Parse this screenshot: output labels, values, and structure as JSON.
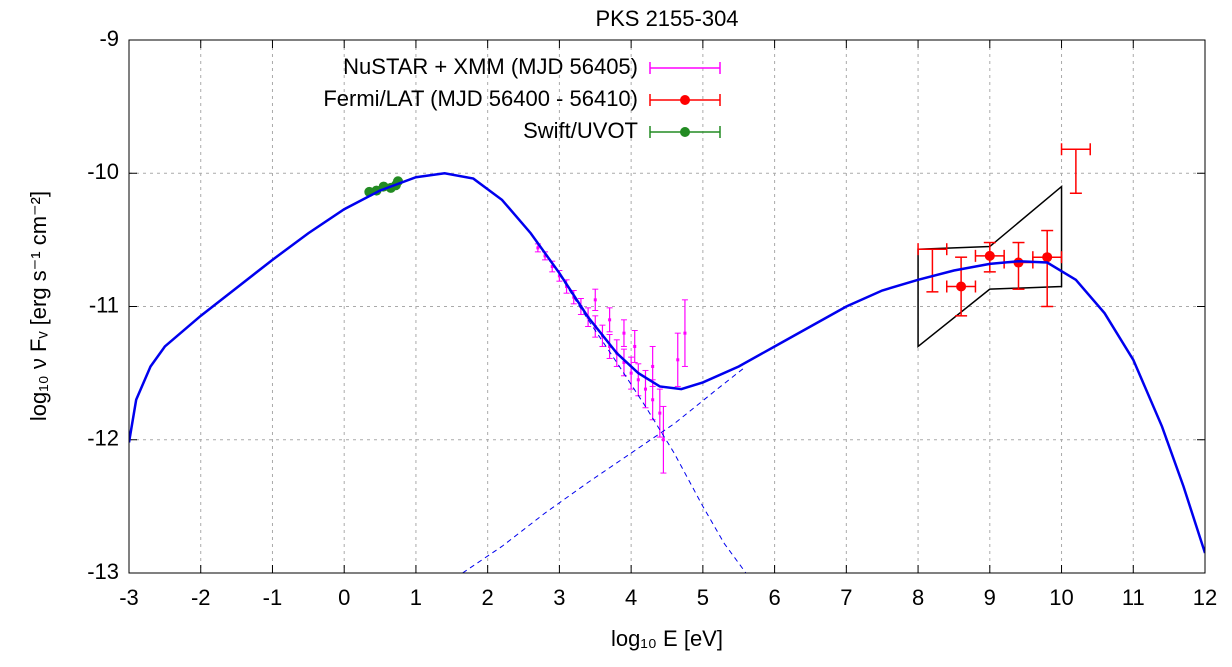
{
  "chart_data": {
    "type": "sed",
    "title": "PKS 2155-304",
    "xlabel": "log₁₀ E [eV]",
    "ylabel": "log₁₀ ν Fᵥ [erg s⁻¹ cm⁻²]",
    "xlim": [
      -3,
      12
    ],
    "ylim": [
      -13,
      -9
    ],
    "xticks": [
      -3,
      -2,
      -1,
      0,
      1,
      2,
      3,
      4,
      5,
      6,
      7,
      8,
      9,
      10,
      11,
      12
    ],
    "yticks": [
      -13,
      -12,
      -11,
      -10,
      -9
    ],
    "grid": true,
    "series": [
      {
        "name": "NuSTAR + XMM (MJD 56405)",
        "color": "#ff00ff",
        "marker": false,
        "x": [
          2.7,
          2.8,
          2.9,
          3.0,
          3.1,
          3.2,
          3.3,
          3.4,
          3.5,
          3.6,
          3.7,
          3.8,
          3.9,
          4.0,
          4.1,
          4.2,
          4.3,
          4.4,
          4.45,
          3.5,
          3.7,
          3.9,
          4.05,
          4.3,
          4.65,
          4.75
        ],
        "y": [
          -10.56,
          -10.62,
          -10.7,
          -10.77,
          -10.85,
          -10.93,
          -11.0,
          -11.08,
          -11.15,
          -11.22,
          -11.3,
          -11.35,
          -11.42,
          -11.5,
          -11.55,
          -11.62,
          -11.7,
          -11.8,
          -12.0,
          -10.95,
          -11.1,
          -11.2,
          -11.3,
          -11.45,
          -11.4,
          -11.2
        ],
        "yerr": [
          0.03,
          0.03,
          0.04,
          0.04,
          0.05,
          0.05,
          0.06,
          0.07,
          0.08,
          0.08,
          0.09,
          0.1,
          0.1,
          0.12,
          0.12,
          0.14,
          0.15,
          0.18,
          0.25,
          0.08,
          0.09,
          0.1,
          0.12,
          0.15,
          0.2,
          0.25
        ]
      },
      {
        "name": "Fermi/LAT (MJD 56400 - 56410)",
        "color": "#ff0000",
        "marker": [
          false,
          true,
          true,
          true,
          true,
          false
        ],
        "x": [
          8.2,
          8.6,
          9.0,
          9.4,
          9.8,
          10.2
        ],
        "y": [
          -10.57,
          -10.85,
          -10.62,
          -10.67,
          -10.63,
          -9.82
        ],
        "xerr": [
          0.2,
          0.2,
          0.2,
          0.2,
          0.2,
          0.2
        ],
        "yerr_low": [
          0.32,
          0.22,
          0.12,
          0.2,
          0.37,
          0.33
        ],
        "yerr_high": [
          0,
          0.22,
          0.1,
          0.15,
          0.2,
          0
        ]
      },
      {
        "name": "Swift/UVOT",
        "color": "#228b22",
        "marker": true,
        "x": [
          0.35,
          0.45,
          0.55,
          0.65,
          0.72,
          0.75
        ],
        "y": [
          -10.14,
          -10.13,
          -10.1,
          -10.11,
          -10.09,
          -10.06
        ]
      }
    ],
    "curves": [
      {
        "style": "solid",
        "color": "#0000ee",
        "x": [
          -3,
          -2.9,
          -2.7,
          -2.5,
          -2,
          -1.5,
          -1,
          -0.5,
          0,
          0.5,
          1,
          1.4,
          1.8,
          2.2,
          2.6,
          3.0,
          3.4,
          3.8,
          4.1,
          4.4,
          4.7,
          5.0,
          5.5,
          6,
          6.5,
          7,
          7.5,
          8,
          8.5,
          9,
          9.4,
          9.8,
          10.2,
          10.6,
          11.0,
          11.4,
          11.7,
          12
        ],
        "y": [
          -12.02,
          -11.7,
          -11.45,
          -11.3,
          -11.07,
          -10.86,
          -10.65,
          -10.45,
          -10.27,
          -10.13,
          -10.03,
          -10.0,
          -10.04,
          -10.2,
          -10.45,
          -10.75,
          -11.08,
          -11.35,
          -11.5,
          -11.6,
          -11.62,
          -11.57,
          -11.45,
          -11.3,
          -11.15,
          -11.0,
          -10.88,
          -10.8,
          -10.73,
          -10.68,
          -10.66,
          -10.67,
          -10.8,
          -11.05,
          -11.4,
          -11.9,
          -12.35,
          -12.85
        ]
      },
      {
        "style": "dashed",
        "color": "#0000ee",
        "x": [
          3.0,
          3.4,
          3.8,
          4.2,
          4.6,
          5.0,
          5.3,
          5.6
        ],
        "y": [
          -10.76,
          -11.1,
          -11.42,
          -11.75,
          -12.1,
          -12.5,
          -12.78,
          -13.0
        ]
      },
      {
        "style": "dashed",
        "color": "#0000ee",
        "x": [
          1.65,
          2.2,
          2.8,
          3.4,
          4.0,
          4.6,
          5.2,
          5.6
        ],
        "y": [
          -13.0,
          -12.8,
          -12.55,
          -12.32,
          -12.1,
          -11.88,
          -11.62,
          -11.45
        ]
      }
    ],
    "butterfly": {
      "color": "#000000",
      "x": [
        8,
        9,
        10,
        10,
        9,
        8
      ],
      "y": [
        -10.57,
        -10.55,
        -10.1,
        -10.85,
        -10.87,
        -11.3
      ]
    }
  }
}
